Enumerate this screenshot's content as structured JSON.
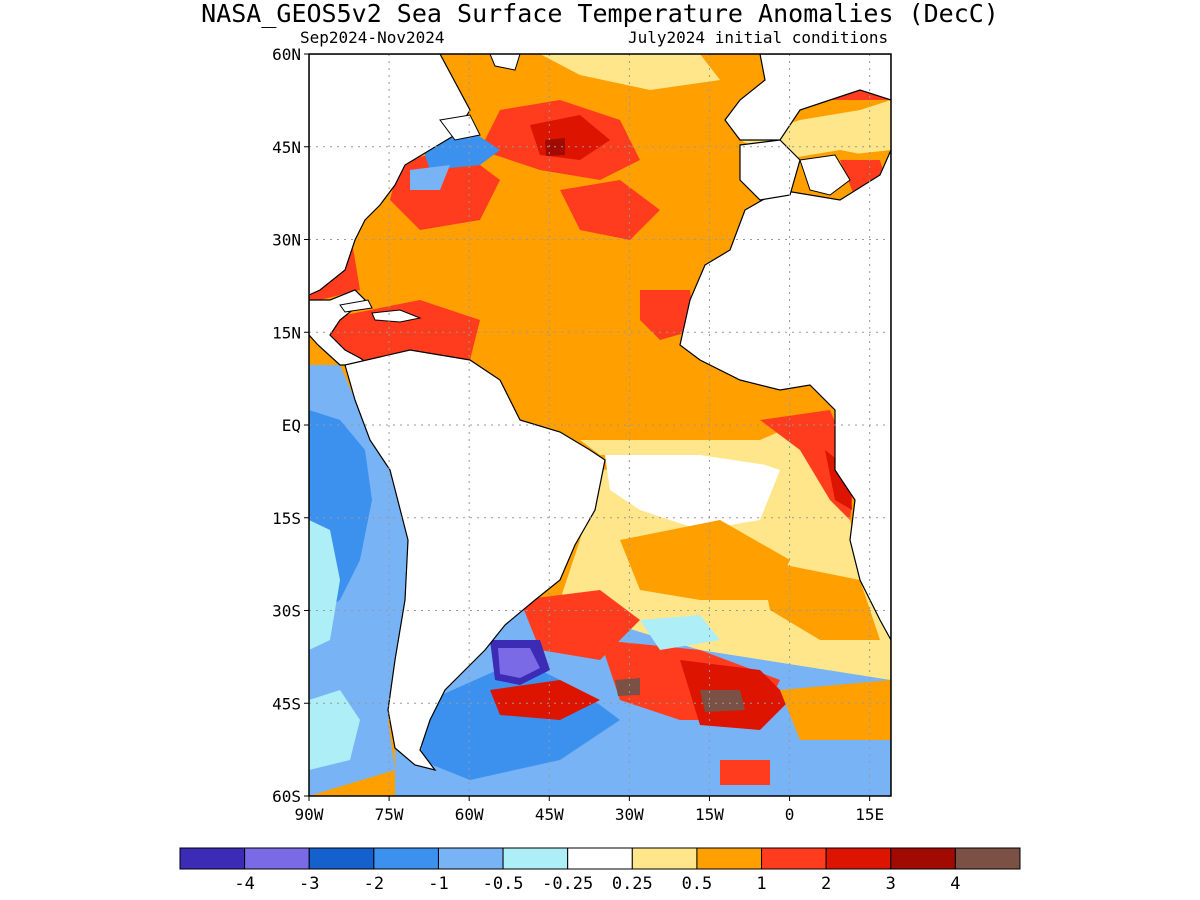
{
  "title": "NASA_GEOS5v2 Sea Surface Temperature Anomalies (DecC)",
  "subtitle_left": "Sep2024-Nov2024",
  "subtitle_right": "July2024 initial conditions",
  "map": {
    "projection": "lat-lon",
    "lon_range": [
      -90,
      19
    ],
    "lat_range": [
      -60,
      60
    ],
    "lat_ticks": [
      {
        "value": 60,
        "label": "60N"
      },
      {
        "value": 45,
        "label": "45N"
      },
      {
        "value": 30,
        "label": "30N"
      },
      {
        "value": 15,
        "label": "15N"
      },
      {
        "value": 0,
        "label": "EQ"
      },
      {
        "value": -15,
        "label": "15S"
      },
      {
        "value": -30,
        "label": "30S"
      },
      {
        "value": -45,
        "label": "45S"
      },
      {
        "value": -60,
        "label": "60S"
      }
    ],
    "lon_ticks": [
      {
        "value": -90,
        "label": "90W"
      },
      {
        "value": -75,
        "label": "75W"
      },
      {
        "value": -60,
        "label": "60W"
      },
      {
        "value": -45,
        "label": "45W"
      },
      {
        "value": -30,
        "label": "30W"
      },
      {
        "value": -15,
        "label": "15W"
      },
      {
        "value": 0,
        "label": "0"
      },
      {
        "value": 15,
        "label": "15E"
      }
    ],
    "grid": "dotted"
  },
  "colorbar": {
    "colors": [
      "#3b2bb5",
      "#7b6ae6",
      "#1460cc",
      "#3c91ef",
      "#78b4f5",
      "#aeeef6",
      "#ffffff",
      "#ffe68a",
      "#ffa000",
      "#ff3c1e",
      "#dc1400",
      "#a00a00",
      "#7a5144"
    ],
    "labels": [
      "-4",
      "-3",
      "-2",
      "-1",
      "-0.5",
      "-0.25",
      "0.25",
      "0.5",
      "1",
      "2",
      "3",
      "4"
    ]
  }
}
